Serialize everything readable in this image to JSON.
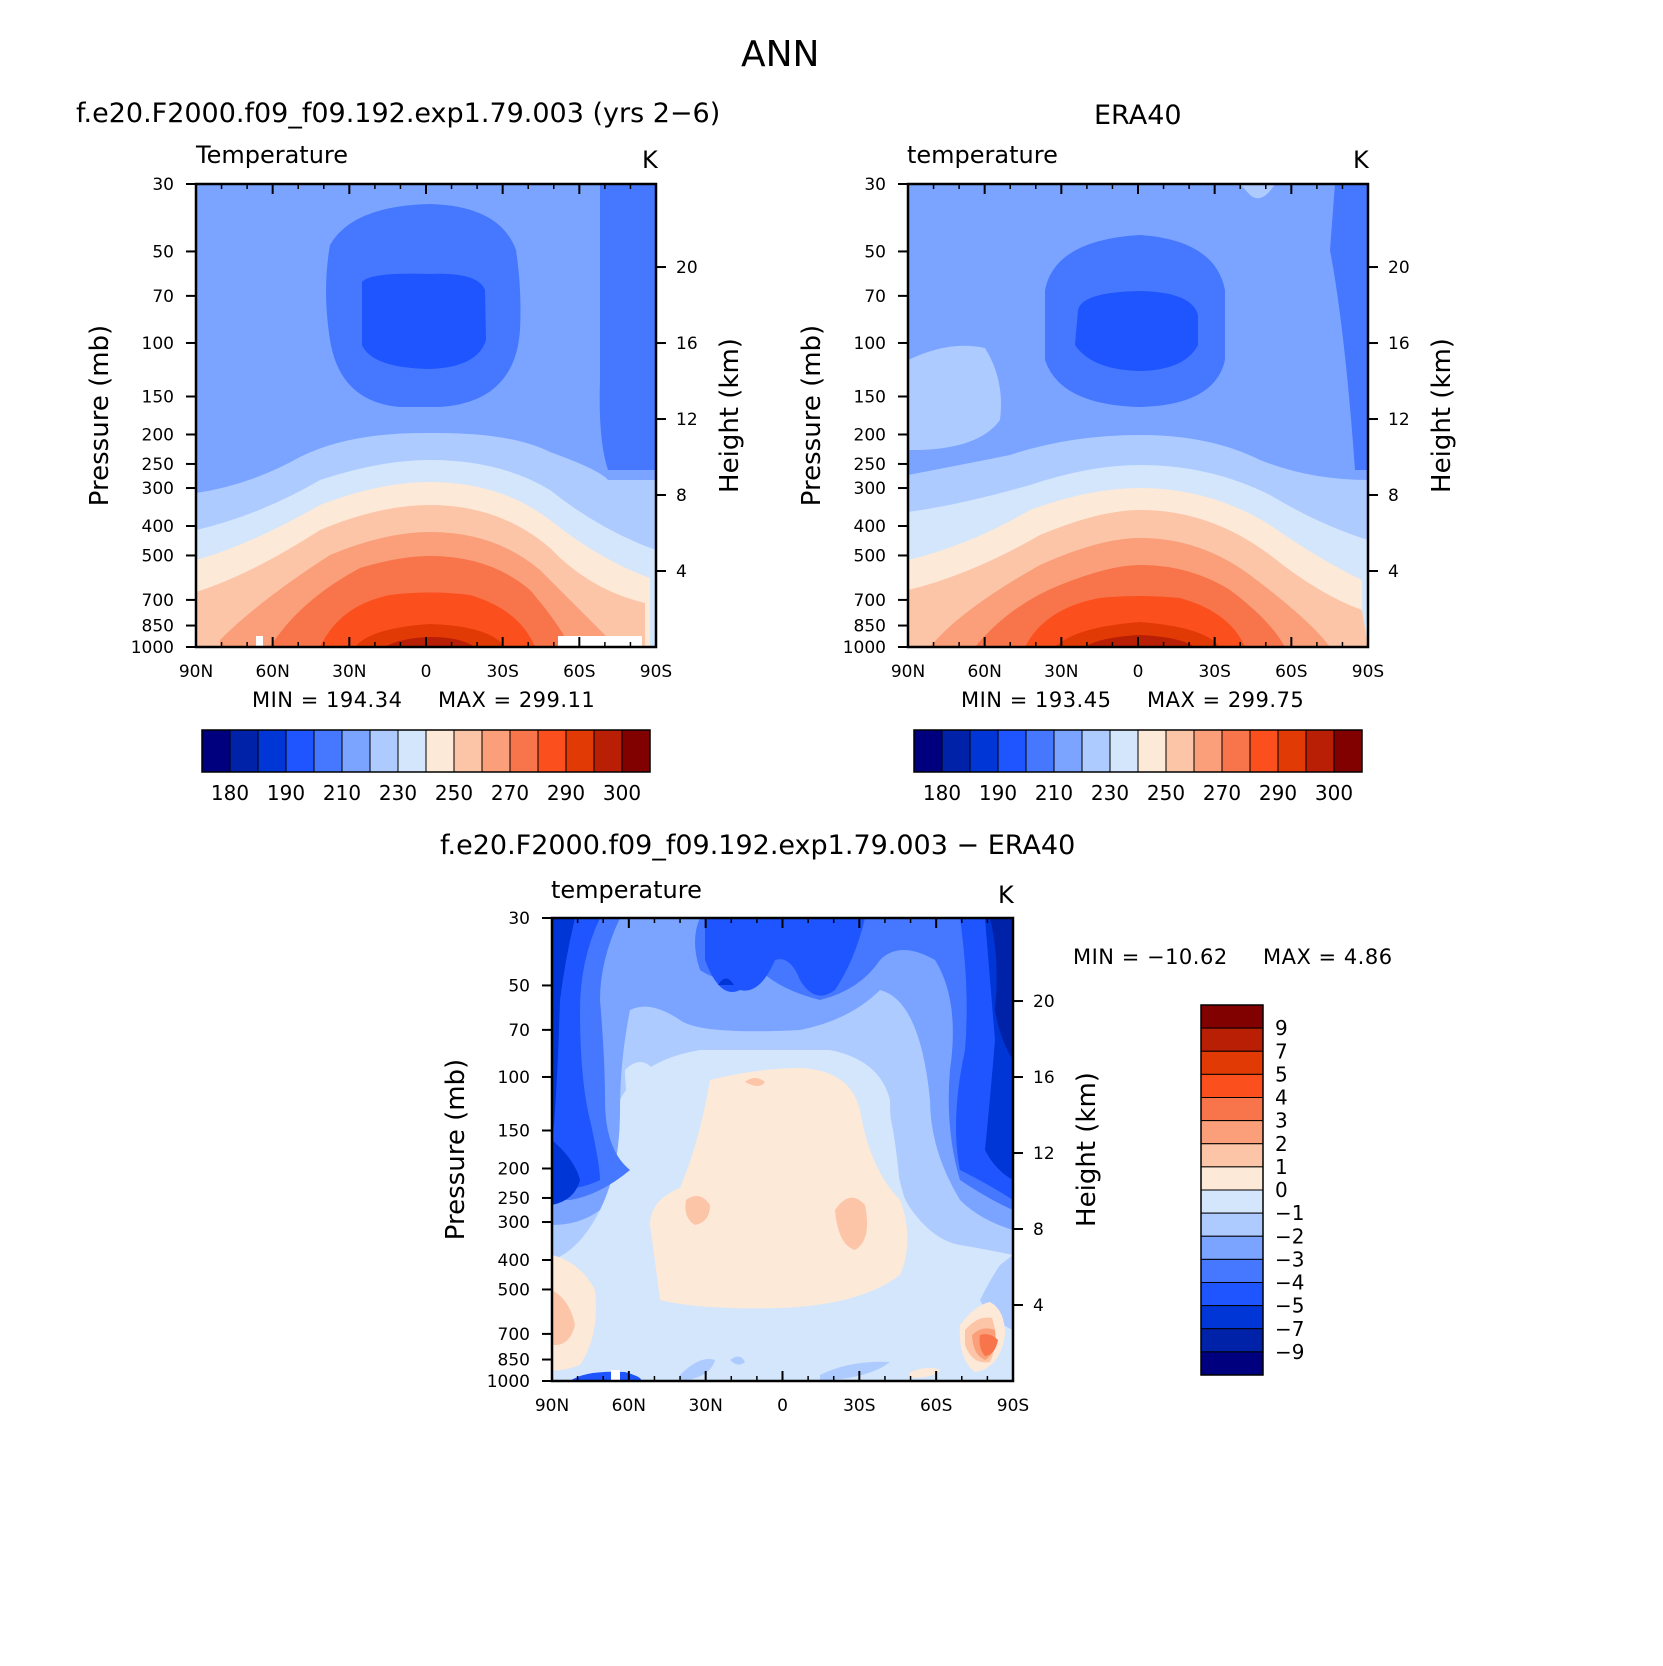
{
  "season": "ANN",
  "panels": [
    {
      "title": "f.e20.F2000.f09_f09.192.exp1.79.003 (yrs 2−6)",
      "variable": "Temperature",
      "units": "K",
      "min_text": "MIN  =  194.34",
      "max_text": "MAX  =  299.11"
    },
    {
      "title": "ERA40",
      "variable": "temperature",
      "units": "K",
      "min_text": "MIN  =  193.45",
      "max_text": "MAX  =  299.75"
    },
    {
      "title": "f.e20.F2000.f09_f09.192.exp1.79.003  −  ERA40",
      "variable": "temperature",
      "units": "K",
      "min_text": "MIN  =  −10.62",
      "max_text": "MAX  =     4.86"
    }
  ],
  "chart_data": [
    {
      "type": "heatmap",
      "panel": "model",
      "title": "f.e20.F2000.f09_f09.192.exp1.79.003 (yrs 2−6)",
      "ylabel": "Pressure (mb)",
      "ylabel_right": "Height (km)",
      "x_ticks": [
        "90N",
        "60N",
        "30N",
        "0",
        "30S",
        "60S",
        "90S"
      ],
      "y_ticks": [
        "30",
        "50",
        "70",
        "100",
        "150",
        "200",
        "250",
        "300",
        "400",
        "500",
        "700",
        "850",
        "1000"
      ],
      "y_right_ticks": [
        "4",
        "8",
        "12",
        "16",
        "20"
      ],
      "colorbar_levels": [
        180,
        185,
        190,
        200,
        210,
        220,
        230,
        240,
        250,
        260,
        270,
        280,
        290,
        295,
        300
      ],
      "colorbar_labels": [
        "180",
        "190",
        "210",
        "230",
        "250",
        "270",
        "290",
        "300"
      ],
      "min": 194.34,
      "max": 299.11
    },
    {
      "type": "heatmap",
      "panel": "obs",
      "title": "ERA40",
      "ylabel": "Pressure (mb)",
      "ylabel_right": "Height (km)",
      "x_ticks": [
        "90N",
        "60N",
        "30N",
        "0",
        "30S",
        "60S",
        "90S"
      ],
      "y_ticks": [
        "30",
        "50",
        "70",
        "100",
        "150",
        "200",
        "250",
        "300",
        "400",
        "500",
        "700",
        "850",
        "1000"
      ],
      "y_right_ticks": [
        "4",
        "8",
        "12",
        "16",
        "20"
      ],
      "colorbar_labels": [
        "180",
        "190",
        "210",
        "230",
        "250",
        "270",
        "290",
        "300"
      ],
      "min": 193.45,
      "max": 299.75
    },
    {
      "type": "heatmap",
      "panel": "difference",
      "title": "f.e20.F2000.f09_f09.192.exp1.79.003  −  ERA40",
      "ylabel": "Pressure (mb)",
      "ylabel_right": "Height (km)",
      "x_ticks": [
        "90N",
        "60N",
        "30N",
        "0",
        "30S",
        "60S",
        "90S"
      ],
      "y_ticks": [
        "30",
        "50",
        "70",
        "100",
        "150",
        "200",
        "250",
        "300",
        "400",
        "500",
        "700",
        "850",
        "1000"
      ],
      "y_right_ticks": [
        "4",
        "8",
        "12",
        "16",
        "20"
      ],
      "colorbar_labels": [
        "9",
        "7",
        "5",
        "4",
        "3",
        "2",
        "1",
        "0",
        "−1",
        "−2",
        "−3",
        "−4",
        "−5",
        "−7",
        "−9"
      ],
      "min": -10.62,
      "max": 4.86
    }
  ],
  "colors": {
    "abs_scale": [
      "#00007f",
      "#0022a8",
      "#0036d5",
      "#1e55ff",
      "#4677ff",
      "#7aa4ff",
      "#aecbff",
      "#d4e6fb",
      "#fde9d8",
      "#fcc5a8",
      "#fa9f79",
      "#f8744a",
      "#fb4f1e",
      "#e23a05",
      "#b91f05",
      "#810000"
    ],
    "diff_scale": [
      "#810000",
      "#b91f05",
      "#e23a05",
      "#fb4f1e",
      "#f8744a",
      "#fa9f79",
      "#fcc5a8",
      "#fde9d8",
      "#d4e6fb",
      "#aecbff",
      "#7aa4ff",
      "#4677ff",
      "#1e55ff",
      "#0036d5",
      "#0022a8",
      "#00007f"
    ]
  }
}
